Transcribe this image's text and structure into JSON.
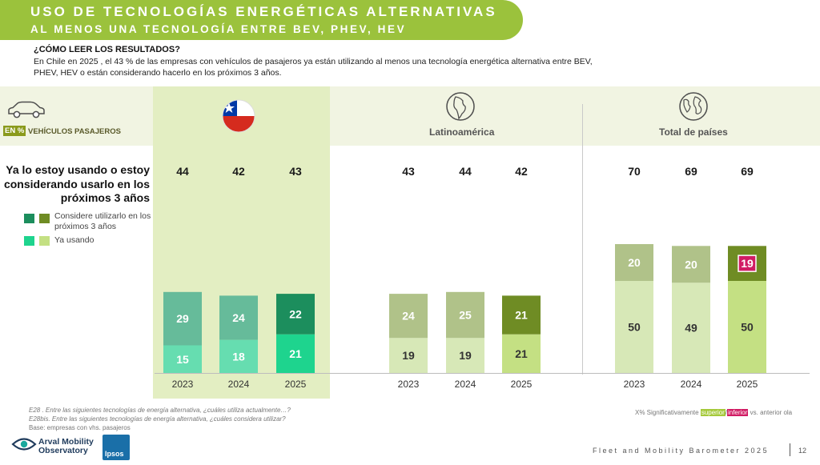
{
  "header": {
    "title": "USO DE TECNOLOGÍAS ENERGÉTICAS ALTERNATIVAS",
    "subtitle": "AL MENOS UNA TECNOLOGÍA ENTRE BEV, PHEV, HEV"
  },
  "howto": {
    "title": "¿CÓMO LEER LOS RESULTADOS?",
    "body": "En Chile en 2025 , el 43 % de las empresas con vehículos de pasajeros ya están utilizando al menos una tecnología energética alternativa entre BEV, PHEV, HEV o están considerando hacerlo en los próximos 3 años."
  },
  "segment": {
    "unit_badge": "EN %",
    "label": "VEHÍCULOS PASAJEROS",
    "icon": "car-icon"
  },
  "question": "Ya lo estoy usando o estoy considerando usarlo en los próximos 3 años",
  "legend": {
    "considering": "Considere utilizarlo en los próximos 3 años",
    "using": "Ya usando"
  },
  "regions": [
    {
      "name": "",
      "icon": "chile-flag-icon"
    },
    {
      "name": "Latinoamérica",
      "icon": "americas-globe-icon"
    },
    {
      "name": "Total de países",
      "icon": "world-globe-icon"
    }
  ],
  "colors": {
    "chile_using": "#66ddb0",
    "chile_considering": "#66bb9a",
    "chile_using_2025": "#1ed48e",
    "chile_considering_2025": "#1c8e5d",
    "latam_using": "#d7e8b7",
    "latam_considering": "#b0c289",
    "latam_using_2025": "#c4e083",
    "latam_considering_2025": "#6f8c24",
    "chile_band": "#e3eec2",
    "banner": "#9bc23c",
    "significant_lower": "#d11c64",
    "significant_higher": "#a5c93b"
  },
  "chart_data": {
    "type": "bar",
    "stacked": true,
    "groups": [
      {
        "region": "Chile",
        "categories": [
          "2023",
          "2024",
          "2025"
        ],
        "totals": [
          44,
          42,
          43
        ],
        "series": [
          {
            "name": "Ya usando",
            "values": [
              15,
              18,
              21
            ]
          },
          {
            "name": "Considere utilizarlo en los próximos 3 años",
            "values": [
              29,
              24,
              22
            ]
          }
        ]
      },
      {
        "region": "Latinoamérica",
        "categories": [
          "2023",
          "2024",
          "2025"
        ],
        "totals": [
          43,
          44,
          42
        ],
        "series": [
          {
            "name": "Ya usando",
            "values": [
              19,
              19,
              21
            ]
          },
          {
            "name": "Considere utilizarlo en los próximos 3 años",
            "values": [
              24,
              25,
              21
            ]
          }
        ]
      },
      {
        "region": "Total de países",
        "categories": [
          "2023",
          "2024",
          "2025"
        ],
        "totals": [
          70,
          69,
          69
        ],
        "series": [
          {
            "name": "Ya usando",
            "values": [
              50,
              49,
              50
            ]
          },
          {
            "name": "Considere utilizarlo en los próximos 3 años",
            "values": [
              20,
              20,
              19
            ]
          }
        ],
        "significance": [
          {
            "category": "2025",
            "series": "Considere utilizarlo en los próximos 3 años",
            "direction": "inferior"
          }
        ]
      }
    ]
  },
  "notes": {
    "e28": "E28 . Entre las siguientes tecnologías de energía alternativa, ¿cuáles utiliza actualmente…?",
    "e28bis": "E28bis. Entre las siguientes tecnologías de energía alternativa, ¿cuáles considera utilizar?",
    "base": "Base: empresas con vhs. pasajeros"
  },
  "significance_legend": {
    "prefix": "X% Significativamente",
    "higher": "superior",
    "separator": "/",
    "lower": "inferior",
    "suffix": "vs. anterior ola"
  },
  "footer": {
    "title": "Fleet and Mobility Barometer 2025",
    "page": "12"
  },
  "logos": {
    "arval_line1": "Arval Mobility",
    "arval_line2": "Observatory",
    "ipsos": "Ipsos"
  }
}
